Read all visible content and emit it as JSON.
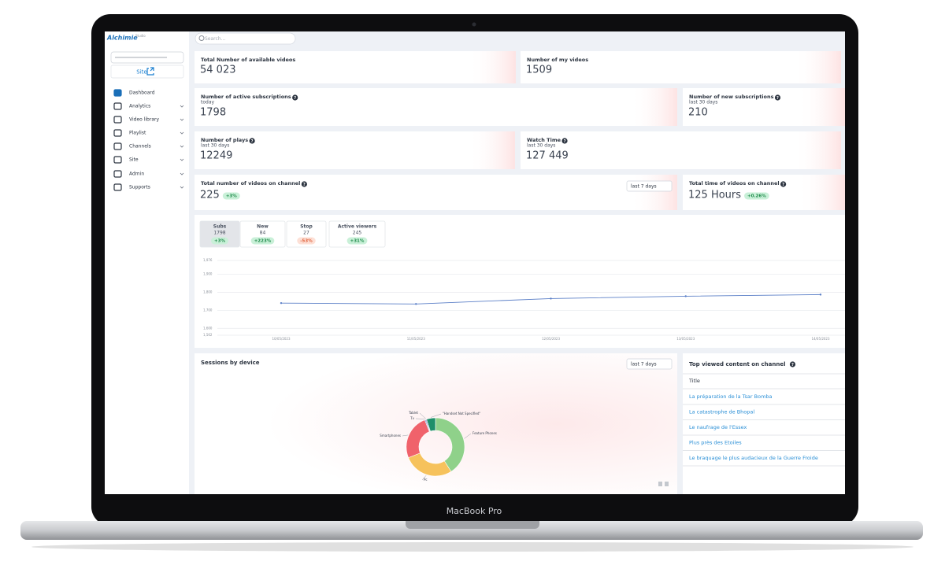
{
  "device_label": "MacBook Pro",
  "brand": "Alchimie",
  "brand_sub": "Studio",
  "search_placeholder": "Search...",
  "site_button": "Site",
  "nav": [
    "Dashboard",
    "Analytics",
    "Video library",
    "Playlist",
    "Channels",
    "Site",
    "Admin",
    "Supports"
  ],
  "cards": [
    {
      "title": "Total Number of available videos",
      "value": "54 023"
    },
    {
      "title": "Number of my videos",
      "value": "1509"
    },
    {
      "title": "Number of active subscriptions",
      "subtitle": "today",
      "value": "1798"
    },
    {
      "title": "Number of new subscriptions",
      "subtitle": "last 30 days",
      "value": "210"
    },
    {
      "title": "Number of plays",
      "subtitle": "last 30 days",
      "value": "12249"
    },
    {
      "title": "Watch Time",
      "subtitle": "last 30 days",
      "value": "127 449"
    },
    {
      "title": "Total number of videos on channel",
      "value": "225",
      "badge": "+3%",
      "dropdown": "last 7 days"
    },
    {
      "title": "Total time of videos on channel",
      "value": "125 Hours",
      "badge": "+0.26%"
    }
  ],
  "tabs": [
    {
      "label": "Subs",
      "value": "1798",
      "change": "+3%"
    },
    {
      "label": "New",
      "value": "84",
      "change": "+223%"
    },
    {
      "label": "Stop",
      "value": "27",
      "change": "-53%"
    },
    {
      "label": "Active viewers",
      "value": "245",
      "change": "+31%"
    }
  ],
  "line_chart": {
    "type": "line",
    "color": "#5b7fc7",
    "x": [
      "10/05/2023",
      "11/05/2023",
      "12/05/2023",
      "13/05/2023",
      "14/05/2023"
    ],
    "values": [
      1740,
      1735,
      1765,
      1778,
      1787
    ],
    "ylim": [
      1562,
      1976
    ],
    "yticks": [
      {
        "value": 1562,
        "label": "1,562"
      },
      {
        "value": 1600,
        "label": "1,600"
      },
      {
        "value": 1700,
        "label": "1,700"
      },
      {
        "value": 1800,
        "label": "1,800"
      },
      {
        "value": 1900,
        "label": "1,900"
      },
      {
        "value": 1976,
        "label": "1,976"
      }
    ],
    "grid": true
  },
  "sessions": {
    "title": "Sessions by device",
    "dropdown": "last 7 days",
    "chart": {
      "type": "donut",
      "categories": [
        "Feature Phones",
        "Pc",
        "Smartphones",
        "Tv",
        "Tablet",
        "\"Handset Not Specified\""
      ],
      "values": [
        41,
        28,
        25,
        0.5,
        0.5,
        5
      ],
      "colors": [
        "#8fd18a",
        "#f6c25c",
        "#f0626b",
        "#3b6fb6",
        "#6a4fa0",
        "#1f8f6a"
      ]
    }
  },
  "top_content": {
    "title": "Top viewed content on channel",
    "header": "Title",
    "rows": [
      "La préparation de la Tsar Bomba",
      "La catastrophe de Bhopal",
      "Le naufrage de l'Essex",
      "Plus près des Etoiles",
      "Le braquage le plus audacieux de la Guerre Froide"
    ]
  }
}
